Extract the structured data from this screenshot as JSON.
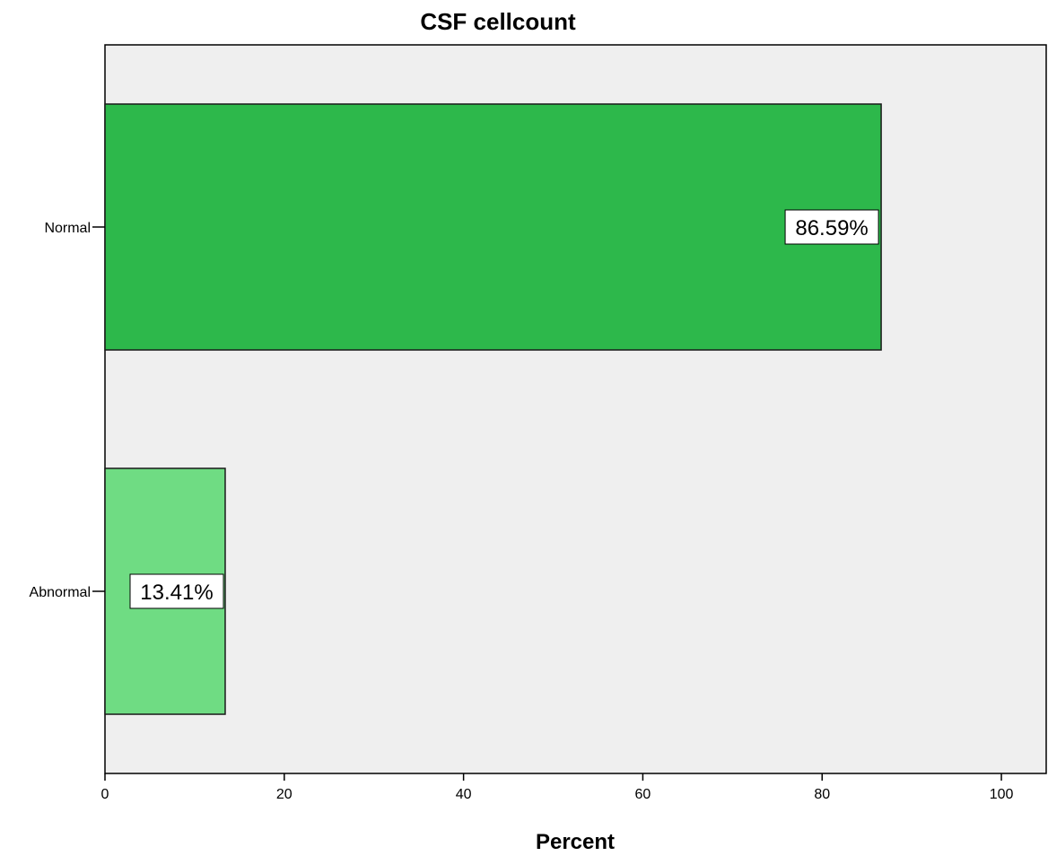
{
  "chart_data": {
    "type": "bar",
    "orientation": "horizontal",
    "title": "CSF cellcount",
    "xlabel": "Percent",
    "ylabel": "",
    "categories": [
      "Normal",
      "Abnormal"
    ],
    "values": [
      86.59,
      13.41
    ],
    "data_labels": [
      "86.59%",
      "13.41%"
    ],
    "bar_colors": [
      "#2db84b",
      "#6fdc83"
    ],
    "plot_background": "#efefef",
    "xlim": [
      0,
      105
    ],
    "xticks": [
      0,
      20,
      40,
      60,
      80,
      100
    ],
    "xtick_labels": [
      "0",
      "20",
      "40",
      "60",
      "80",
      "100"
    ],
    "grid": false,
    "legend": "none"
  }
}
